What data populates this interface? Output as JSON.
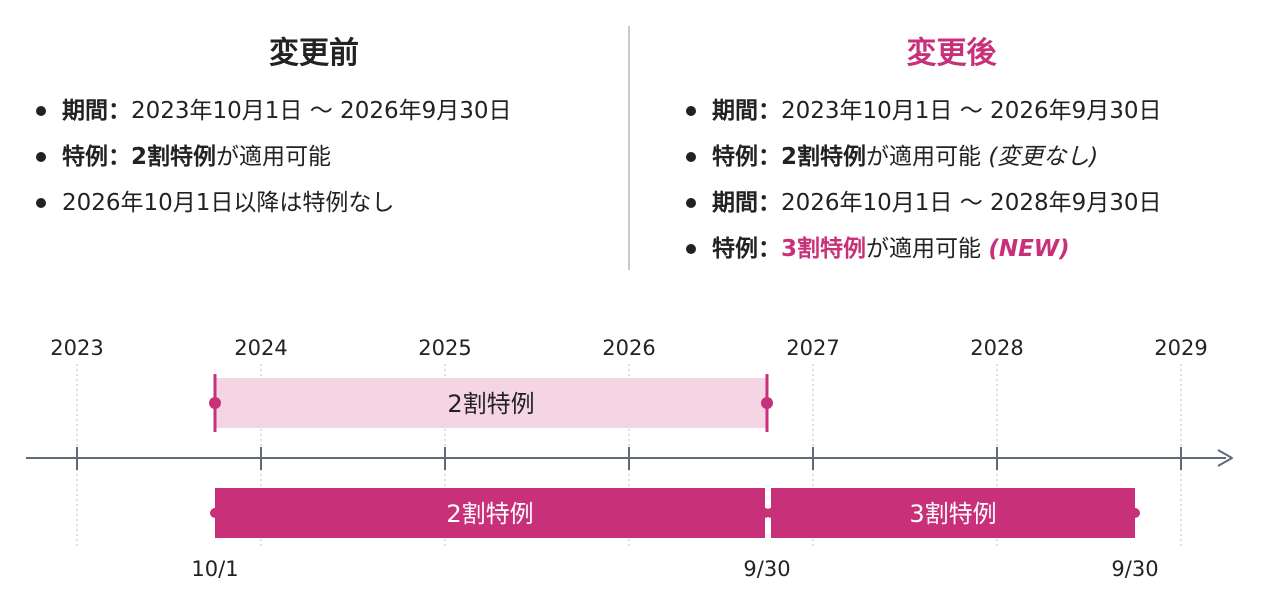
{
  "before": {
    "title": "変更前",
    "items": [
      {
        "label": "期間",
        "sep": "：",
        "text": "2023年10月1日 〜 2026年9月30日"
      },
      {
        "label": "特例",
        "sep": "：",
        "bold": "2割特例",
        "text": "が適用可能"
      },
      {
        "text": "2026年10月1日以降は特例なし"
      }
    ]
  },
  "after": {
    "title": "変更後",
    "items": [
      {
        "label": "期間",
        "sep": "：",
        "text": "2023年10月1日 〜 2026年9月30日"
      },
      {
        "label": "特例",
        "sep": "：",
        "bold": "2割特例",
        "text": "が適用可能",
        "note": "(変更なし)"
      },
      {
        "label": "期間",
        "sep": "：",
        "text": "2026年10月1日 〜 2028年9月30日"
      },
      {
        "label": "特例",
        "sep": "：",
        "bold": "3割特例",
        "text": "が適用可能",
        "note": "(NEW)"
      }
    ]
  },
  "timeline": {
    "years": [
      "2023",
      "2024",
      "2025",
      "2026",
      "2027",
      "2028",
      "2029"
    ],
    "before_bar": {
      "label": "2割特例",
      "start": 2023.75,
      "end": 2026.75
    },
    "after_bars": [
      {
        "label": "2割特例",
        "start": 2023.75,
        "end": 2026.75
      },
      {
        "label": "3割特例",
        "start": 2026.75,
        "end": 2028.75
      }
    ],
    "date_labels": [
      {
        "text": "10/1",
        "at": 2023.75
      },
      {
        "text": "9/30",
        "at": 2026.75
      },
      {
        "text": "9/30",
        "at": 2028.75
      }
    ]
  },
  "colors": {
    "accent": "#c8317a",
    "light_bar": "#f5d5e4",
    "axis": "#5f6a7a",
    "gridline": "#c7c7c7",
    "text": "#222222"
  }
}
